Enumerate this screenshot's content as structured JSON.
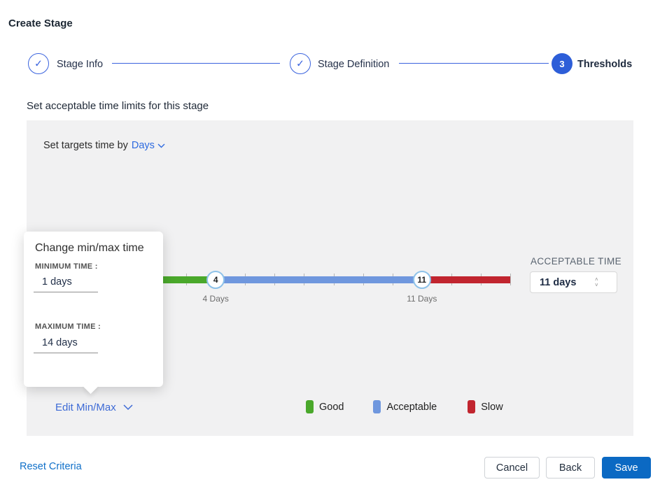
{
  "page": {
    "title": "Create Stage"
  },
  "stepper": {
    "steps": [
      {
        "label": "Stage Info",
        "state": "complete"
      },
      {
        "label": "Stage Definition",
        "state": "complete"
      },
      {
        "label": "Thresholds",
        "state": "active",
        "number": "3"
      }
    ]
  },
  "section": {
    "heading": "Set acceptable time limits for this stage"
  },
  "targets": {
    "prefix": "Set targets time by",
    "unit": "Days"
  },
  "popover": {
    "title": "Change min/max time",
    "min_label": "MINIMUM TIME :",
    "min_value": "1 days",
    "max_label": "MAXIMUM TIME :",
    "max_value": "14 days"
  },
  "slider": {
    "min": 1,
    "max": 14,
    "handles": [
      {
        "value": 4,
        "label": "4 Days"
      },
      {
        "value": 11,
        "label": "11 Days"
      }
    ],
    "colors": {
      "good": "#4aa82b",
      "acceptable": "#6f97de",
      "slow": "#c1252f"
    }
  },
  "acceptable_time": {
    "label": "ACCEPTABLE TIME",
    "value": "11 days"
  },
  "edit_minmax": {
    "label": "Edit Min/Max"
  },
  "legend": {
    "items": [
      {
        "label": "Good",
        "color": "#4aa82b"
      },
      {
        "label": "Acceptable",
        "color": "#6f97de"
      },
      {
        "label": "Slow",
        "color": "#c1252f"
      }
    ]
  },
  "footer": {
    "reset_label": "Reset Criteria",
    "cancel_label": "Cancel",
    "back_label": "Back",
    "save_label": "Save"
  },
  "accent_color": "#2d5ed8"
}
